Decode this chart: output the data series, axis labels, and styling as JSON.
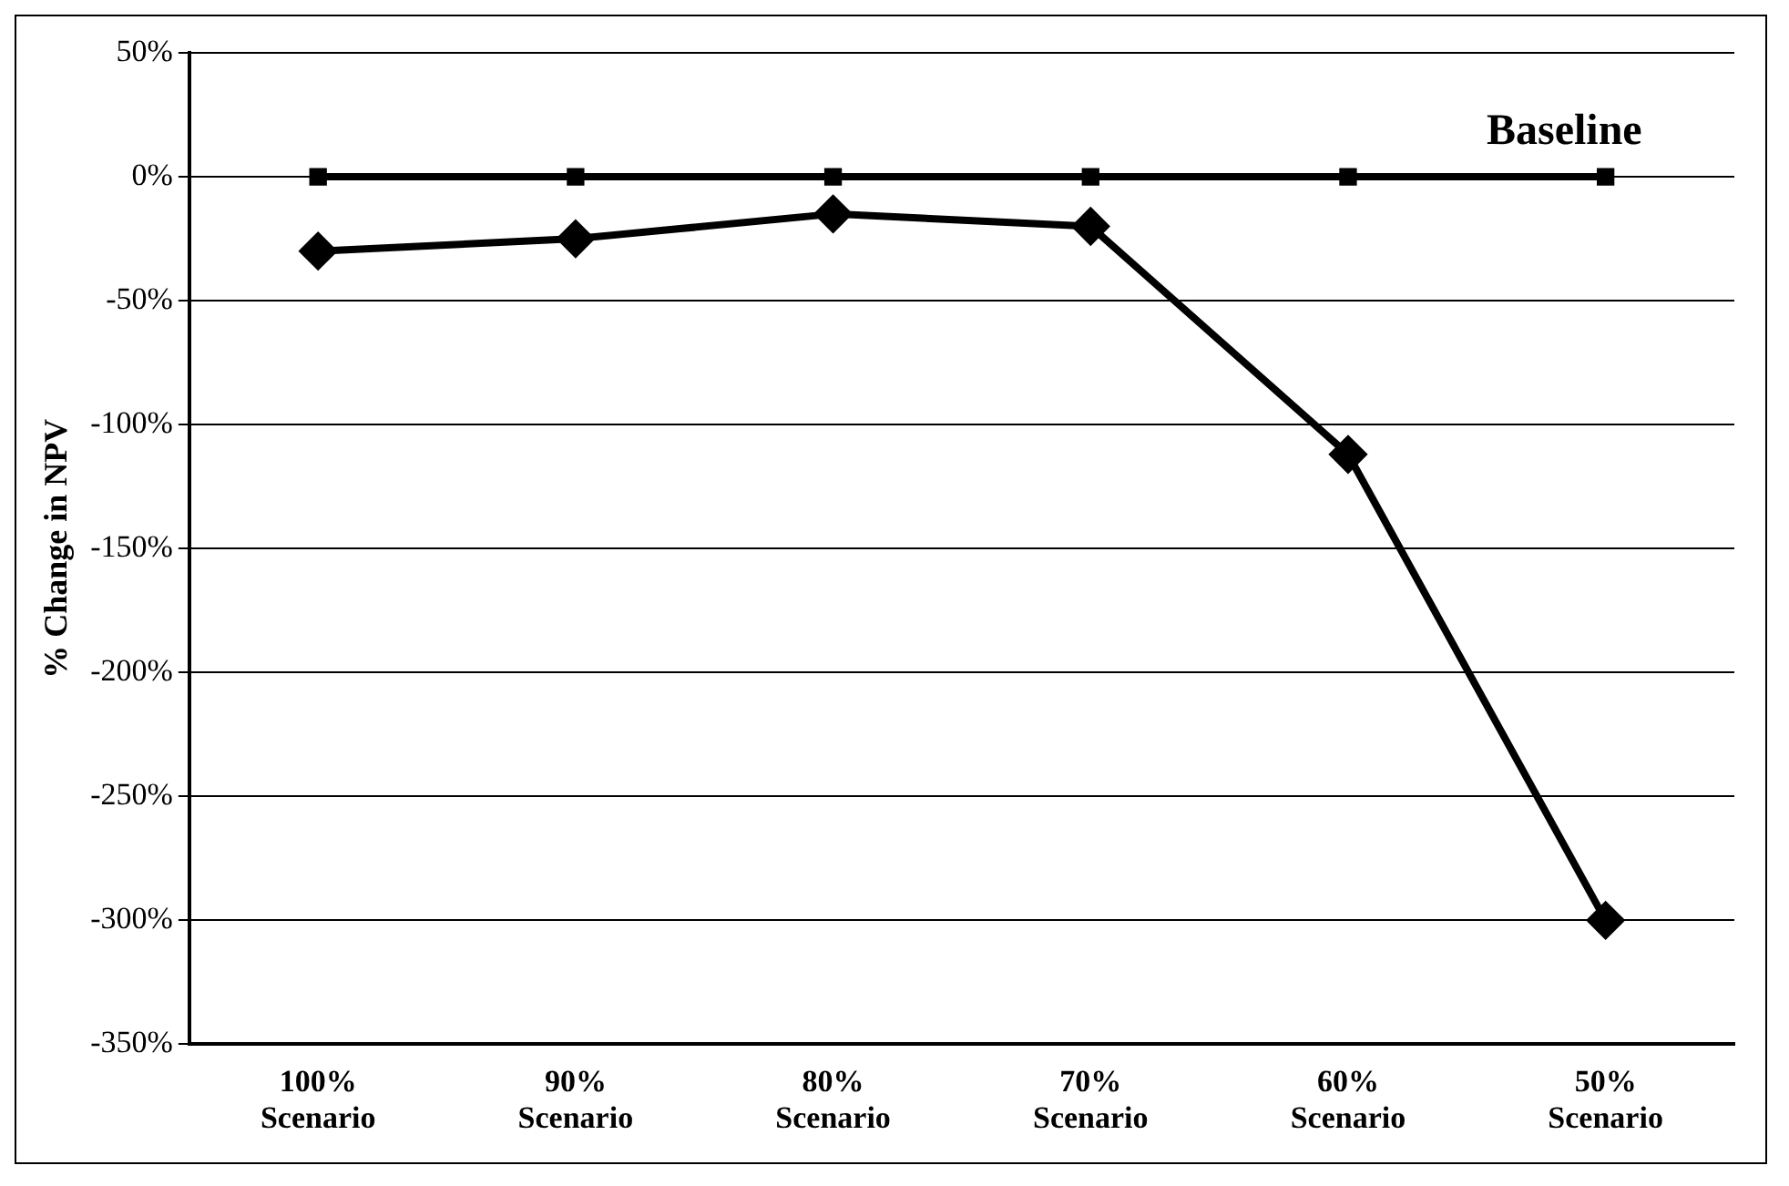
{
  "chart_data": {
    "type": "line",
    "ylabel": "% Change in NPV",
    "categories": [
      "100%\nScenario",
      "90%\nScenario",
      "80%\nScenario",
      "70%\nScenario",
      "60%\nScenario",
      "50%\nScenario"
    ],
    "series": [
      {
        "name": "Baseline",
        "color": "#000000",
        "marker": "square",
        "values": [
          0,
          0,
          0,
          0,
          0,
          0
        ]
      },
      {
        "color": "#000000",
        "marker": "diamond",
        "values": [
          -30,
          -25,
          -15,
          -20,
          -112,
          -300
        ]
      }
    ],
    "ylim": [
      -350,
      50
    ],
    "yticks": [
      {
        "value": 50,
        "label": "50%"
      },
      {
        "value": 0,
        "label": "0%"
      },
      {
        "value": -50,
        "label": "-50%"
      },
      {
        "value": -100,
        "label": "-100%"
      },
      {
        "value": -150,
        "label": "-150%"
      },
      {
        "value": -200,
        "label": "-200%"
      },
      {
        "value": -250,
        "label": "-250%"
      },
      {
        "value": -300,
        "label": "-300%"
      },
      {
        "value": -350,
        "label": "-350%"
      }
    ],
    "grid": "y",
    "legend": false,
    "line_style": "solid"
  }
}
